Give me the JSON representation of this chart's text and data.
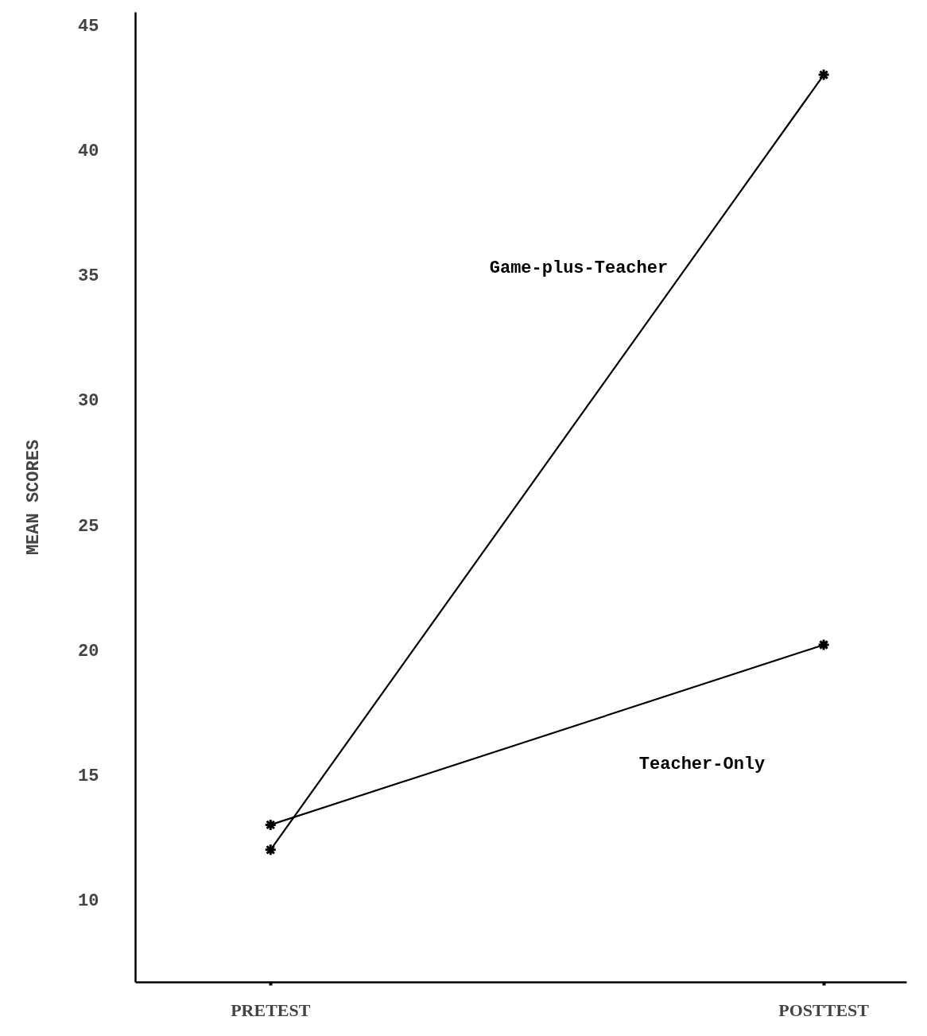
{
  "chart_data": {
    "type": "line",
    "categories": [
      "PRETEST",
      "POSTTEST"
    ],
    "ylabel": "MEAN SCORES",
    "ylim": [
      6.7,
      45.5
    ],
    "yticks": [
      10,
      15,
      20,
      25,
      30,
      35,
      40,
      45
    ],
    "grid": false,
    "marker": "cross",
    "line_style": "solid",
    "series": [
      {
        "name": "Game-plus-Teacher",
        "color": "#000000",
        "values": [
          12,
          43
        ]
      },
      {
        "name": "Teacher-Only",
        "color": "#000000",
        "values": [
          13,
          20.2
        ]
      }
    ]
  }
}
